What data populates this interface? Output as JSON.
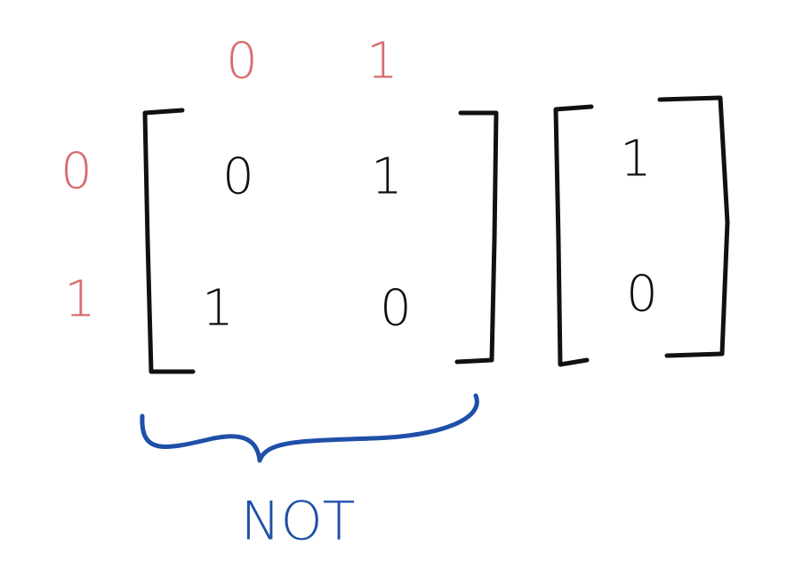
{
  "column_labels": [
    "0",
    "1"
  ],
  "row_labels": [
    "0",
    "1"
  ],
  "matrix": {
    "rows": [
      [
        "0",
        "1"
      ],
      [
        "1",
        "0"
      ]
    ]
  },
  "vector": [
    "1",
    "0"
  ],
  "brace_label": "NOT"
}
